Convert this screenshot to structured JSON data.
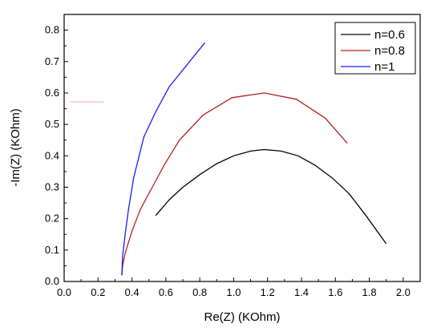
{
  "chart_data": {
    "type": "line",
    "xlabel": "Re(Z) (KOhm)",
    "ylabel": "-Im(Z) (KOhm)",
    "xlim": [
      0.0,
      2.1
    ],
    "ylim": [
      0.0,
      0.85
    ],
    "x_ticks": [
      "0.0",
      "0.2",
      "0.4",
      "0.6",
      "0.8",
      "1.0",
      "1.2",
      "1.4",
      "1.6",
      "1.8",
      "2.0"
    ],
    "y_ticks": [
      "0.0",
      "0.1",
      "0.2",
      "0.3",
      "0.4",
      "0.5",
      "0.6",
      "0.7",
      "0.8"
    ],
    "grid": false,
    "legend_position": "top-right",
    "series": [
      {
        "name": "n=0.6",
        "color": "#000000",
        "x": [
          0.54,
          0.62,
          0.7,
          0.8,
          0.9,
          1.0,
          1.1,
          1.18,
          1.28,
          1.38,
          1.48,
          1.58,
          1.68,
          1.78,
          1.9
        ],
        "y": [
          0.21,
          0.26,
          0.3,
          0.34,
          0.375,
          0.4,
          0.415,
          0.42,
          0.415,
          0.4,
          0.37,
          0.33,
          0.28,
          0.21,
          0.12
        ]
      },
      {
        "name": "n=0.8",
        "color": "#b22222",
        "x": [
          0.34,
          0.345,
          0.36,
          0.4,
          0.45,
          0.52,
          0.59,
          0.68,
          0.82,
          0.99,
          1.18,
          1.37,
          1.54,
          1.67
        ],
        "y": [
          0.02,
          0.05,
          0.09,
          0.16,
          0.23,
          0.3,
          0.37,
          0.45,
          0.53,
          0.585,
          0.6,
          0.58,
          0.52,
          0.44
        ]
      },
      {
        "name": "n=1",
        "color": "#1a1aff",
        "x": [
          0.34,
          0.345,
          0.36,
          0.38,
          0.41,
          0.47,
          0.54,
          0.62,
          0.83
        ],
        "y": [
          0.02,
          0.08,
          0.15,
          0.23,
          0.33,
          0.46,
          0.54,
          0.62,
          0.76
        ]
      }
    ]
  }
}
